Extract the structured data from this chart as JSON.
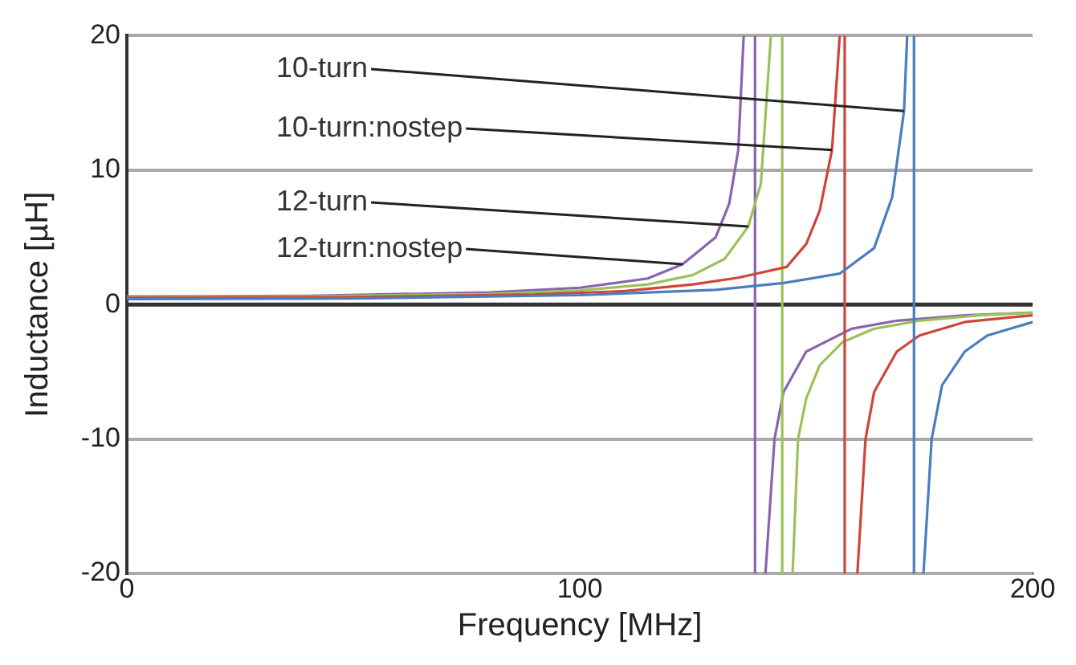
{
  "chart_data": {
    "type": "line",
    "xlabel": "Frequency [MHz]",
    "ylabel": "Inductance [µH]",
    "xlim": [
      0,
      200
    ],
    "xticks": [
      0,
      100,
      200
    ],
    "ylim": [
      -20,
      20
    ],
    "yticks": [
      -20,
      -10,
      0,
      10,
      20
    ],
    "grid": "y",
    "legend": false,
    "marker": "none",
    "line_style": "solid",
    "ref_lines": [
      {
        "axis": "y",
        "value": 0,
        "color": "#333333",
        "line_style": "solid"
      }
    ],
    "series": [
      {
        "name": "10-turn",
        "color": "#4a7ebf",
        "x": [
          0,
          50,
          100,
          130,
          145,
          157.4,
          165,
          169,
          171.6,
          172.3,
          173,
          173.8,
          173.8,
          175,
          175.9,
          177.7,
          180,
          185,
          190,
          200
        ],
        "values": [
          0.4,
          0.45,
          0.7,
          1.1,
          1.6,
          2.3,
          4.2,
          8,
          14.4,
          20,
          null,
          20,
          -20,
          null,
          -20,
          -10,
          -6,
          -3.5,
          -2.3,
          -1.3
        ]
      },
      {
        "name": "10-turn:nostep",
        "color": "#d0453a",
        "x": [
          0,
          50,
          90,
          110,
          125,
          135,
          145.7,
          150,
          153,
          155.7,
          157.4,
          158,
          158.5,
          158.5,
          160,
          161.3,
          163.1,
          165,
          170,
          175,
          185,
          200
        ],
        "values": [
          0.5,
          0.55,
          0.75,
          1.0,
          1.5,
          2.0,
          2.8,
          4.5,
          7,
          11.5,
          20,
          null,
          20,
          -20,
          null,
          -20,
          -10,
          -6.5,
          -3.5,
          -2.3,
          -1.3,
          -0.8
        ]
      },
      {
        "name": "12-turn",
        "color": "#9bc25a",
        "x": [
          0,
          40,
          80,
          100,
          115,
          125,
          132,
          137.2,
          140,
          142.2,
          143,
          144.7,
          144.7,
          146,
          147,
          148.2,
          150,
          153,
          158,
          165,
          175,
          188,
          200
        ],
        "values": [
          0.55,
          0.6,
          0.79,
          1.05,
          1.5,
          2.2,
          3.4,
          5.8,
          9,
          20,
          null,
          20,
          -20,
          null,
          -20,
          -10,
          -7,
          -4.5,
          -2.8,
          -1.8,
          -1.2,
          -0.8,
          -0.6
        ]
      },
      {
        "name": "12-turn:nostep",
        "color": "#8a64b0",
        "x": [
          0,
          40,
          80,
          100,
          115,
          122.7,
          130,
          133,
          135,
          136.2,
          137,
          138.7,
          138.7,
          140,
          141,
          143,
          145,
          150,
          160,
          170,
          185,
          200
        ],
        "values": [
          0.6,
          0.65,
          0.9,
          1.25,
          1.94,
          3.0,
          5.0,
          7.5,
          11.5,
          20,
          null,
          20,
          -20,
          null,
          -20,
          -10,
          -6.5,
          -3.5,
          -1.8,
          -1.2,
          -0.8,
          -0.6
        ]
      }
    ]
  }
}
